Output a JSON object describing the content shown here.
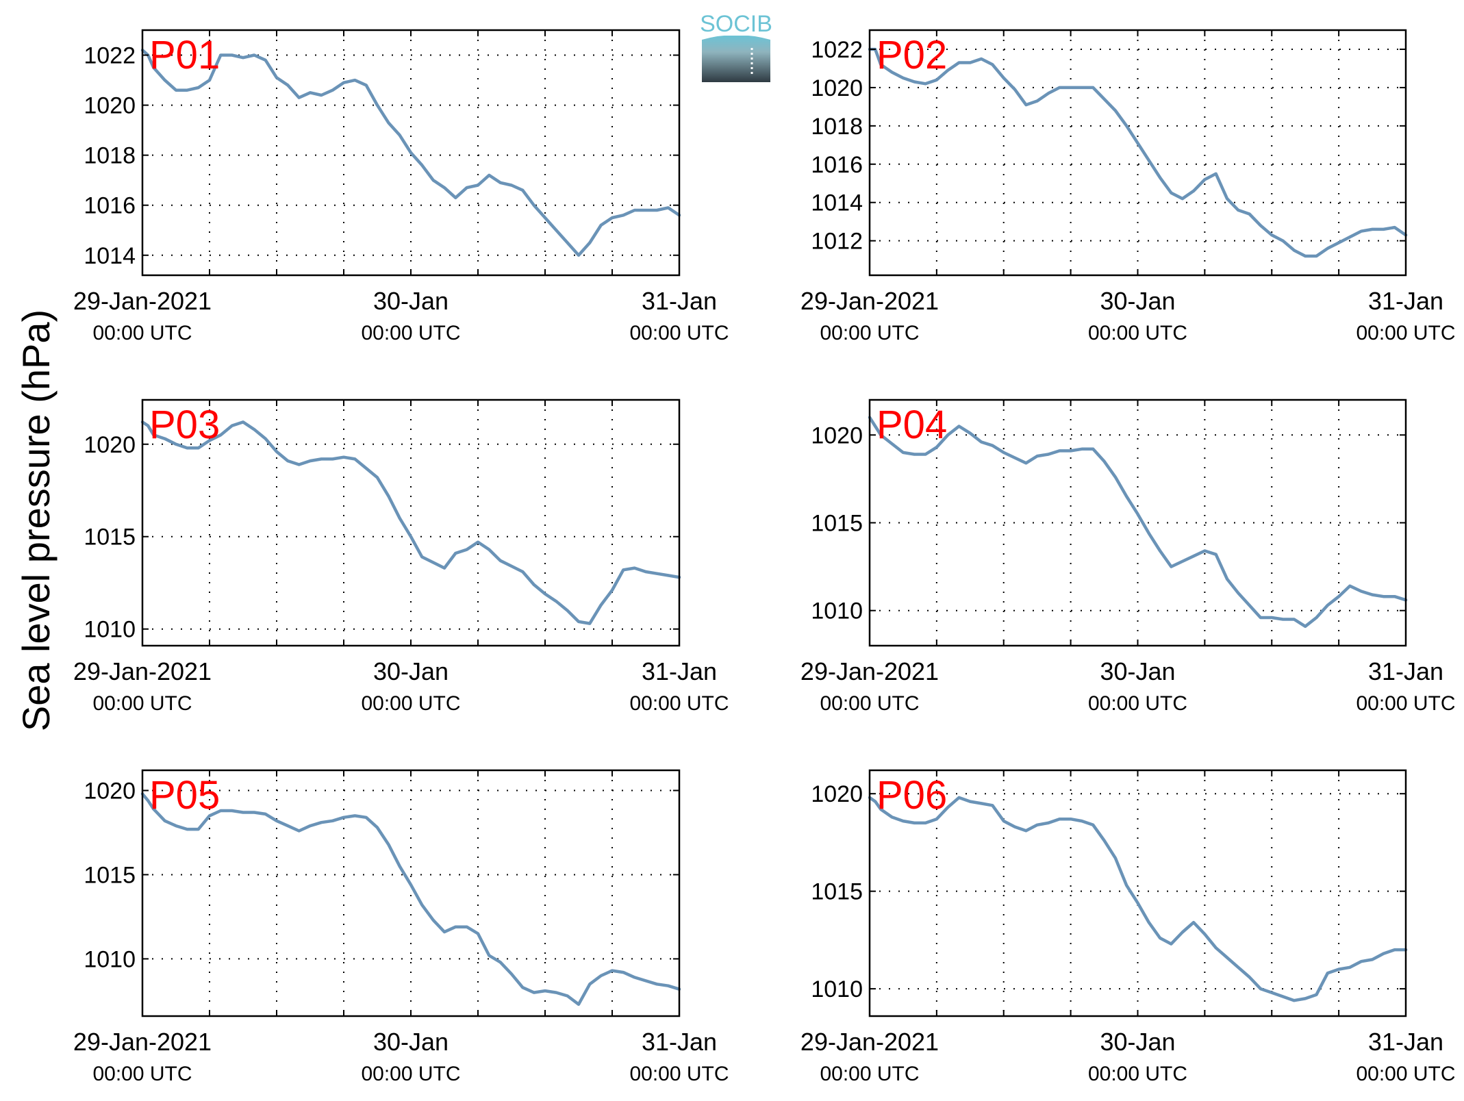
{
  "figure": {
    "ylabel": "Sea level pressure (hPa)",
    "logo_text": "SOCIB"
  },
  "colors": {
    "line": "#6a93b7",
    "panel_label": "#ff0000",
    "axes": "#000000",
    "grid": "#000000",
    "logo_top": "#6cc3d5",
    "logo_bottom": "#2e3a42"
  },
  "chart_data": [
    {
      "type": "line",
      "label": "P01",
      "x_ticks": [
        {
          "line1": "29-Jan-2021",
          "line2": "00:00 UTC"
        },
        {
          "line1": "30-Jan",
          "line2": "00:00 UTC"
        },
        {
          "line1": "31-Jan",
          "line2": "00:00 UTC"
        }
      ],
      "xlim_hours": [
        0,
        48
      ],
      "ylim": [
        1013.2,
        1023.0
      ],
      "yticks": [
        1014,
        1016,
        1018,
        1020,
        1022
      ],
      "grid": true,
      "x": [
        0,
        0.5,
        1,
        2,
        3,
        4,
        5,
        6,
        7,
        8,
        9,
        10,
        11,
        12,
        13,
        14,
        15,
        16,
        17,
        18,
        19,
        20,
        21,
        22,
        23,
        24,
        25,
        26,
        27,
        28,
        29,
        30,
        31,
        32,
        33,
        34,
        35,
        36,
        37,
        38,
        39,
        40,
        41,
        42,
        43,
        44,
        45,
        46,
        47,
        48
      ],
      "values": [
        1022.2,
        1022.0,
        1021.5,
        1021.0,
        1020.6,
        1020.6,
        1020.7,
        1021.0,
        1022.0,
        1022.0,
        1021.9,
        1022.0,
        1021.8,
        1021.1,
        1020.8,
        1020.3,
        1020.5,
        1020.4,
        1020.6,
        1020.9,
        1021.0,
        1020.8,
        1020.0,
        1019.3,
        1018.8,
        1018.1,
        1017.6,
        1017.0,
        1016.7,
        1016.3,
        1016.7,
        1016.8,
        1017.2,
        1016.9,
        1016.8,
        1016.6,
        1016.0,
        1015.5,
        1015.0,
        1014.5,
        1014.0,
        1014.5,
        1015.2,
        1015.5,
        1015.6,
        1015.8,
        1015.8,
        1015.8,
        1015.9,
        1015.6
      ]
    },
    {
      "type": "line",
      "label": "P02",
      "x_ticks": [
        {
          "line1": "29-Jan-2021",
          "line2": "00:00 UTC"
        },
        {
          "line1": "30-Jan",
          "line2": "00:00 UTC"
        },
        {
          "line1": "31-Jan",
          "line2": "00:00 UTC"
        }
      ],
      "xlim_hours": [
        0,
        48
      ],
      "ylim": [
        1010.2,
        1023.0
      ],
      "yticks": [
        1012,
        1014,
        1016,
        1018,
        1020,
        1022
      ],
      "grid": true,
      "x": [
        0,
        0.5,
        1,
        2,
        3,
        4,
        5,
        6,
        7,
        8,
        9,
        10,
        11,
        12,
        13,
        14,
        15,
        16,
        17,
        18,
        19,
        20,
        21,
        22,
        23,
        24,
        25,
        26,
        27,
        28,
        29,
        30,
        31,
        32,
        33,
        34,
        35,
        36,
        37,
        38,
        39,
        40,
        41,
        42,
        43,
        44,
        45,
        46,
        47,
        48
      ],
      "values": [
        1022.0,
        1022.0,
        1021.2,
        1020.8,
        1020.5,
        1020.3,
        1020.2,
        1020.4,
        1020.9,
        1021.3,
        1021.3,
        1021.5,
        1021.2,
        1020.5,
        1019.9,
        1019.1,
        1019.3,
        1019.7,
        1020.0,
        1020.0,
        1020.0,
        1020.0,
        1019.4,
        1018.8,
        1018.0,
        1017.1,
        1016.2,
        1015.3,
        1014.5,
        1014.2,
        1014.6,
        1015.2,
        1015.5,
        1014.2,
        1013.6,
        1013.4,
        1012.8,
        1012.3,
        1012.0,
        1011.5,
        1011.2,
        1011.2,
        1011.6,
        1011.9,
        1012.2,
        1012.5,
        1012.6,
        1012.6,
        1012.7,
        1012.3
      ]
    },
    {
      "type": "line",
      "label": "P03",
      "x_ticks": [
        {
          "line1": "29-Jan-2021",
          "line2": "00:00 UTC"
        },
        {
          "line1": "30-Jan",
          "line2": "00:00 UTC"
        },
        {
          "line1": "31-Jan",
          "line2": "00:00 UTC"
        }
      ],
      "xlim_hours": [
        0,
        48
      ],
      "ylim": [
        1009.1,
        1022.4
      ],
      "yticks": [
        1010,
        1015,
        1020
      ],
      "grid": true,
      "x": [
        0,
        0.5,
        1,
        2,
        3,
        4,
        5,
        6,
        7,
        8,
        9,
        10,
        11,
        12,
        13,
        14,
        15,
        16,
        17,
        18,
        19,
        20,
        21,
        22,
        23,
        24,
        25,
        26,
        27,
        28,
        29,
        30,
        31,
        32,
        33,
        34,
        35,
        36,
        37,
        38,
        39,
        40,
        41,
        42,
        43,
        44,
        45,
        46,
        47,
        48
      ],
      "values": [
        1021.2,
        1021.0,
        1020.5,
        1020.3,
        1020.0,
        1019.8,
        1019.8,
        1020.2,
        1020.5,
        1021.0,
        1021.2,
        1020.8,
        1020.3,
        1019.6,
        1019.1,
        1018.9,
        1019.1,
        1019.2,
        1019.2,
        1019.3,
        1019.2,
        1018.7,
        1018.2,
        1017.2,
        1016.0,
        1015.0,
        1013.9,
        1013.6,
        1013.3,
        1014.1,
        1014.3,
        1014.7,
        1014.3,
        1013.7,
        1013.4,
        1013.1,
        1012.4,
        1011.9,
        1011.5,
        1011.0,
        1010.4,
        1010.3,
        1011.3,
        1012.1,
        1013.2,
        1013.3,
        1013.1,
        1013.0,
        1012.9,
        1012.8
      ]
    },
    {
      "type": "line",
      "label": "P04",
      "x_ticks": [
        {
          "line1": "29-Jan-2021",
          "line2": "00:00 UTC"
        },
        {
          "line1": "30-Jan",
          "line2": "00:00 UTC"
        },
        {
          "line1": "31-Jan",
          "line2": "00:00 UTC"
        }
      ],
      "xlim_hours": [
        0,
        48
      ],
      "ylim": [
        1008.0,
        1022.0
      ],
      "yticks": [
        1010,
        1015,
        1020
      ],
      "grid": true,
      "x": [
        0,
        0.5,
        1,
        2,
        3,
        4,
        5,
        6,
        7,
        8,
        9,
        10,
        11,
        12,
        13,
        14,
        15,
        16,
        17,
        18,
        19,
        20,
        21,
        22,
        23,
        24,
        25,
        26,
        27,
        28,
        29,
        30,
        31,
        32,
        33,
        34,
        35,
        36,
        37,
        38,
        39,
        40,
        41,
        42,
        43,
        44,
        45,
        46,
        47,
        48
      ],
      "values": [
        1021.0,
        1020.5,
        1020.0,
        1019.5,
        1019.0,
        1018.9,
        1018.9,
        1019.3,
        1020.0,
        1020.5,
        1020.1,
        1019.6,
        1019.4,
        1019.0,
        1018.7,
        1018.4,
        1018.8,
        1018.9,
        1019.1,
        1019.1,
        1019.2,
        1019.2,
        1018.5,
        1017.6,
        1016.5,
        1015.5,
        1014.4,
        1013.4,
        1012.5,
        1012.8,
        1013.1,
        1013.4,
        1013.2,
        1011.8,
        1011.0,
        1010.3,
        1009.6,
        1009.6,
        1009.5,
        1009.5,
        1009.1,
        1009.6,
        1010.3,
        1010.8,
        1011.4,
        1011.1,
        1010.9,
        1010.8,
        1010.8,
        1010.6
      ]
    },
    {
      "type": "line",
      "label": "P05",
      "x_ticks": [
        {
          "line1": "29-Jan-2021",
          "line2": "00:00 UTC"
        },
        {
          "line1": "30-Jan",
          "line2": "00:00 UTC"
        },
        {
          "line1": "31-Jan",
          "line2": "00:00 UTC"
        }
      ],
      "xlim_hours": [
        0,
        48
      ],
      "ylim": [
        1006.6,
        1021.2
      ],
      "yticks": [
        1010,
        1015,
        1020
      ],
      "grid": true,
      "x": [
        0,
        0.5,
        1,
        2,
        3,
        4,
        5,
        6,
        7,
        8,
        9,
        10,
        11,
        12,
        13,
        14,
        15,
        16,
        17,
        18,
        19,
        20,
        21,
        22,
        23,
        24,
        25,
        26,
        27,
        28,
        29,
        30,
        31,
        32,
        33,
        34,
        35,
        36,
        37,
        38,
        39,
        40,
        41,
        42,
        43,
        44,
        45,
        46,
        47,
        48
      ],
      "values": [
        1019.8,
        1019.4,
        1018.9,
        1018.2,
        1017.9,
        1017.7,
        1017.7,
        1018.5,
        1018.8,
        1018.8,
        1018.7,
        1018.7,
        1018.6,
        1018.2,
        1017.9,
        1017.6,
        1017.9,
        1018.1,
        1018.2,
        1018.4,
        1018.5,
        1018.4,
        1017.8,
        1016.8,
        1015.5,
        1014.4,
        1013.2,
        1012.3,
        1011.6,
        1011.9,
        1011.9,
        1011.5,
        1010.2,
        1009.8,
        1009.1,
        1008.3,
        1008.0,
        1008.1,
        1008.0,
        1007.8,
        1007.3,
        1008.5,
        1009.0,
        1009.3,
        1009.2,
        1008.9,
        1008.7,
        1008.5,
        1008.4,
        1008.2
      ]
    },
    {
      "type": "line",
      "label": "P06",
      "x_ticks": [
        {
          "line1": "29-Jan-2021",
          "line2": "00:00 UTC"
        },
        {
          "line1": "30-Jan",
          "line2": "00:00 UTC"
        },
        {
          "line1": "31-Jan",
          "line2": "00:00 UTC"
        }
      ],
      "xlim_hours": [
        0,
        48
      ],
      "ylim": [
        1008.6,
        1021.2
      ],
      "yticks": [
        1010,
        1015,
        1020
      ],
      "grid": true,
      "x": [
        0,
        0.5,
        1,
        2,
        3,
        4,
        5,
        6,
        7,
        8,
        9,
        10,
        11,
        12,
        13,
        14,
        15,
        16,
        17,
        18,
        19,
        20,
        21,
        22,
        23,
        24,
        25,
        26,
        27,
        28,
        29,
        30,
        31,
        32,
        33,
        34,
        35,
        36,
        37,
        38,
        39,
        40,
        41,
        42,
        43,
        44,
        45,
        46,
        47,
        48
      ],
      "values": [
        1019.8,
        1019.6,
        1019.2,
        1018.8,
        1018.6,
        1018.5,
        1018.5,
        1018.7,
        1019.3,
        1019.8,
        1019.6,
        1019.5,
        1019.4,
        1018.6,
        1018.3,
        1018.1,
        1018.4,
        1018.5,
        1018.7,
        1018.7,
        1018.6,
        1018.4,
        1017.6,
        1016.7,
        1015.3,
        1014.4,
        1013.4,
        1012.6,
        1012.3,
        1012.9,
        1013.4,
        1012.8,
        1012.1,
        1011.6,
        1011.1,
        1010.6,
        1010.0,
        1009.8,
        1009.6,
        1009.4,
        1009.5,
        1009.7,
        1010.8,
        1011.0,
        1011.1,
        1011.4,
        1011.5,
        1011.8,
        1012.0,
        1012.0
      ]
    }
  ]
}
